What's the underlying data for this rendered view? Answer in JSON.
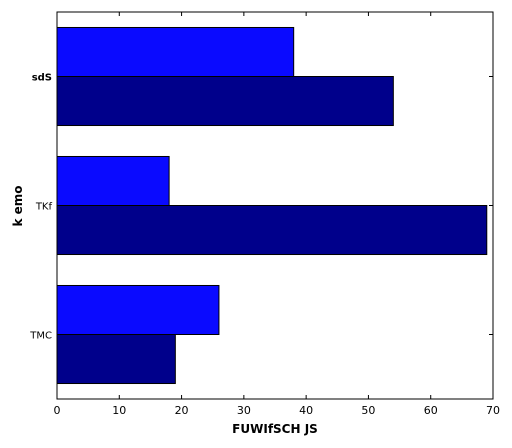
{
  "chart_data": {
    "type": "bar",
    "orientation": "horizontal",
    "categories": [
      "sdS",
      "TKf",
      "TMC"
    ],
    "categories_bold": [
      true,
      false,
      false
    ],
    "series": [
      {
        "values": [
          38,
          18,
          26
        ],
        "color": "#0a0aff"
      },
      {
        "values": [
          54,
          69,
          19
        ],
        "color": "#00008b"
      }
    ],
    "xlabel": "FUWIfSCH JS",
    "ylabel": "k emo",
    "xlim": [
      0,
      70
    ],
    "xticks": [
      0,
      10,
      20,
      30,
      40,
      50,
      60,
      70
    ],
    "grid": false
  }
}
